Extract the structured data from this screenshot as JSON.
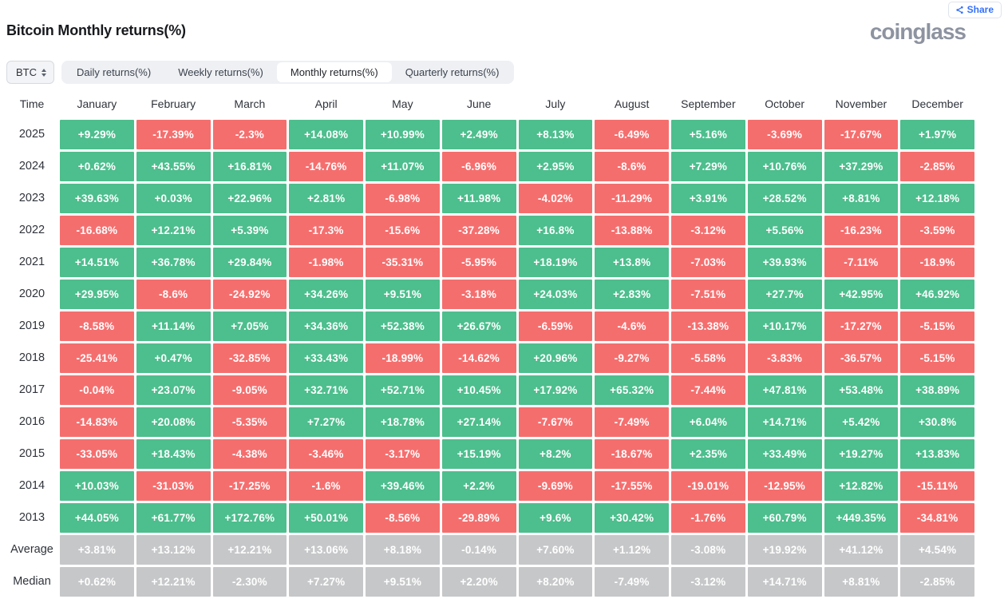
{
  "header": {
    "title": "Bitcoin Monthly returns(%)",
    "logo": "coinglass",
    "share_label": "Share"
  },
  "controls": {
    "symbol": "BTC",
    "tabs": [
      {
        "label": "Daily returns(%)",
        "active": false
      },
      {
        "label": "Weekly returns(%)",
        "active": false
      },
      {
        "label": "Monthly returns(%)",
        "active": true
      },
      {
        "label": "Quarterly returns(%)",
        "active": false
      }
    ]
  },
  "colors": {
    "positive": "#4dbe8d",
    "negative": "#f56e6e",
    "neutral": "#c6c7c9",
    "accent": "#3370ff"
  },
  "table": {
    "columns": [
      "Time",
      "January",
      "February",
      "March",
      "April",
      "May",
      "June",
      "July",
      "August",
      "September",
      "October",
      "November",
      "December"
    ],
    "rows": [
      {
        "label": "2025",
        "values": [
          "+9.29%",
          "-17.39%",
          "-2.3%",
          "+14.08%",
          "+10.99%",
          "+2.49%",
          "+8.13%",
          "-6.49%",
          "+5.16%",
          "-3.69%",
          "-17.67%",
          "+1.97%"
        ]
      },
      {
        "label": "2024",
        "values": [
          "+0.62%",
          "+43.55%",
          "+16.81%",
          "-14.76%",
          "+11.07%",
          "-6.96%",
          "+2.95%",
          "-8.6%",
          "+7.29%",
          "+10.76%",
          "+37.29%",
          "-2.85%"
        ]
      },
      {
        "label": "2023",
        "values": [
          "+39.63%",
          "+0.03%",
          "+22.96%",
          "+2.81%",
          "-6.98%",
          "+11.98%",
          "-4.02%",
          "-11.29%",
          "+3.91%",
          "+28.52%",
          "+8.81%",
          "+12.18%"
        ]
      },
      {
        "label": "2022",
        "values": [
          "-16.68%",
          "+12.21%",
          "+5.39%",
          "-17.3%",
          "-15.6%",
          "-37.28%",
          "+16.8%",
          "-13.88%",
          "-3.12%",
          "+5.56%",
          "-16.23%",
          "-3.59%"
        ]
      },
      {
        "label": "2021",
        "values": [
          "+14.51%",
          "+36.78%",
          "+29.84%",
          "-1.98%",
          "-35.31%",
          "-5.95%",
          "+18.19%",
          "+13.8%",
          "-7.03%",
          "+39.93%",
          "-7.11%",
          "-18.9%"
        ]
      },
      {
        "label": "2020",
        "values": [
          "+29.95%",
          "-8.6%",
          "-24.92%",
          "+34.26%",
          "+9.51%",
          "-3.18%",
          "+24.03%",
          "+2.83%",
          "-7.51%",
          "+27.7%",
          "+42.95%",
          "+46.92%"
        ]
      },
      {
        "label": "2019",
        "values": [
          "-8.58%",
          "+11.14%",
          "+7.05%",
          "+34.36%",
          "+52.38%",
          "+26.67%",
          "-6.59%",
          "-4.6%",
          "-13.38%",
          "+10.17%",
          "-17.27%",
          "-5.15%"
        ]
      },
      {
        "label": "2018",
        "values": [
          "-25.41%",
          "+0.47%",
          "-32.85%",
          "+33.43%",
          "-18.99%",
          "-14.62%",
          "+20.96%",
          "-9.27%",
          "-5.58%",
          "-3.83%",
          "-36.57%",
          "-5.15%"
        ]
      },
      {
        "label": "2017",
        "values": [
          "-0.04%",
          "+23.07%",
          "-9.05%",
          "+32.71%",
          "+52.71%",
          "+10.45%",
          "+17.92%",
          "+65.32%",
          "-7.44%",
          "+47.81%",
          "+53.48%",
          "+38.89%"
        ]
      },
      {
        "label": "2016",
        "values": [
          "-14.83%",
          "+20.08%",
          "-5.35%",
          "+7.27%",
          "+18.78%",
          "+27.14%",
          "-7.67%",
          "-7.49%",
          "+6.04%",
          "+14.71%",
          "+5.42%",
          "+30.8%"
        ]
      },
      {
        "label": "2015",
        "values": [
          "-33.05%",
          "+18.43%",
          "-4.38%",
          "-3.46%",
          "-3.17%",
          "+15.19%",
          "+8.2%",
          "-18.67%",
          "+2.35%",
          "+33.49%",
          "+19.27%",
          "+13.83%"
        ]
      },
      {
        "label": "2014",
        "values": [
          "+10.03%",
          "-31.03%",
          "-17.25%",
          "-1.6%",
          "+39.46%",
          "+2.2%",
          "-9.69%",
          "-17.55%",
          "-19.01%",
          "-12.95%",
          "+12.82%",
          "-15.11%"
        ]
      },
      {
        "label": "2013",
        "values": [
          "+44.05%",
          "+61.77%",
          "+172.76%",
          "+50.01%",
          "-8.56%",
          "-29.89%",
          "+9.6%",
          "+30.42%",
          "-1.76%",
          "+60.79%",
          "+449.35%",
          "-34.81%"
        ]
      }
    ],
    "summary_rows": [
      {
        "label": "Average",
        "values": [
          "+3.81%",
          "+13.12%",
          "+12.21%",
          "+13.06%",
          "+8.18%",
          "-0.14%",
          "+7.60%",
          "+1.12%",
          "-3.08%",
          "+19.92%",
          "+41.12%",
          "+4.54%"
        ]
      },
      {
        "label": "Median",
        "values": [
          "+0.62%",
          "+12.21%",
          "-2.30%",
          "+7.27%",
          "+9.51%",
          "+2.20%",
          "+8.20%",
          "-7.49%",
          "-3.12%",
          "+14.71%",
          "+8.81%",
          "-2.85%"
        ]
      }
    ]
  }
}
